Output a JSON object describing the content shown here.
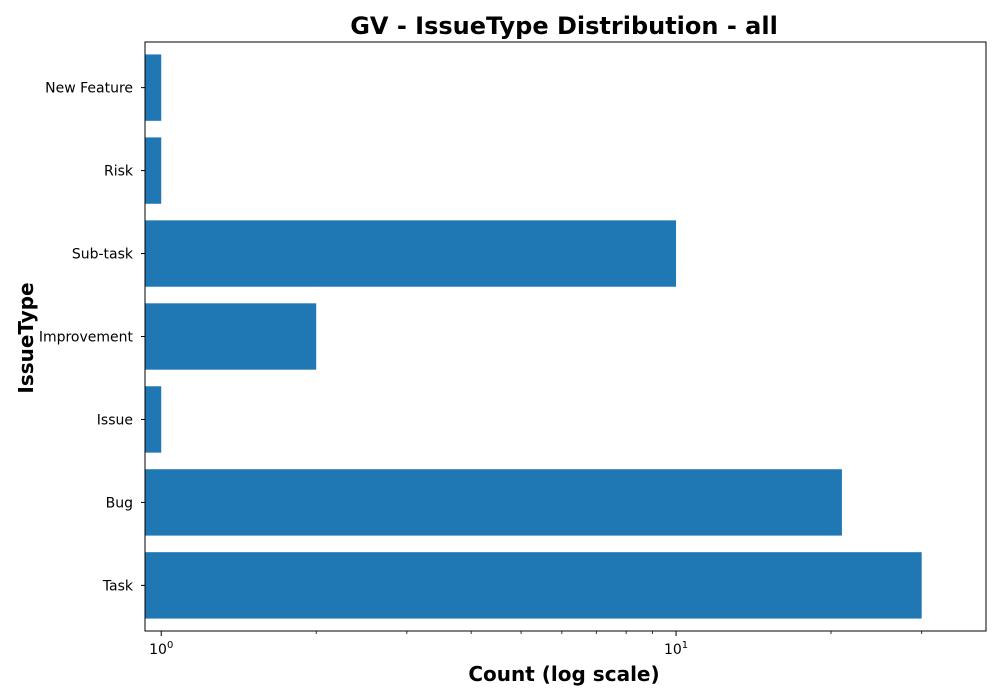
{
  "chart_data": {
    "type": "bar",
    "orientation": "horizontal",
    "title": "GV - IssueType Distribution - all",
    "xlabel": "Count (log scale)",
    "ylabel": "IssueType",
    "xscale": "log",
    "xlim": [
      0.93,
      40
    ],
    "grid": false,
    "categories": [
      "Task",
      "Bug",
      "Issue",
      "Improvement",
      "Sub-task",
      "Risk",
      "New Feature"
    ],
    "values": [
      30,
      21,
      1,
      2,
      10,
      1,
      1
    ],
    "bar_color": "#1f77b4",
    "x_ticks": [
      {
        "value": 1,
        "base": "10",
        "exp": "0"
      },
      {
        "value": 10,
        "base": "10",
        "exp": "1"
      }
    ],
    "x_minor_ticks": [
      2,
      3,
      4,
      5,
      6,
      7,
      8,
      9,
      20,
      30
    ]
  }
}
